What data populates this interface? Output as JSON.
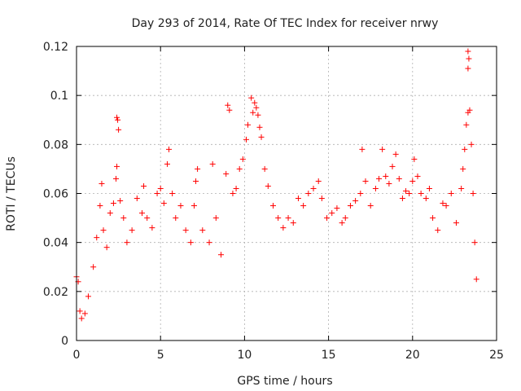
{
  "chart_data": {
    "type": "scatter",
    "title": "Day 293 of 2014, Rate Of TEC Index for receiver nrwy",
    "xlabel": "GPS time / hours",
    "ylabel": "ROTI / TECUs",
    "xlim": [
      0,
      25
    ],
    "ylim": [
      0,
      0.12
    ],
    "xticks": [
      0,
      5,
      10,
      15,
      20,
      25
    ],
    "xtick_labels": [
      "0",
      "5",
      "10",
      "15",
      "20",
      "25"
    ],
    "yticks": [
      0,
      0.02,
      0.04,
      0.06,
      0.08,
      0.1,
      0.12
    ],
    "ytick_labels": [
      "0",
      "0.02",
      "0.04",
      "0.06",
      "0.08",
      "0.1",
      "0.12"
    ],
    "grid": true,
    "marker": "plus",
    "color": "#ff0000",
    "series": [
      {
        "name": "ROTI",
        "points": [
          [
            0.0,
            0.026
          ],
          [
            0.1,
            0.024
          ],
          [
            0.2,
            0.012
          ],
          [
            0.3,
            0.009
          ],
          [
            0.5,
            0.011
          ],
          [
            0.7,
            0.018
          ],
          [
            1.0,
            0.03
          ],
          [
            1.2,
            0.042
          ],
          [
            1.4,
            0.055
          ],
          [
            1.5,
            0.064
          ],
          [
            1.6,
            0.045
          ],
          [
            1.8,
            0.038
          ],
          [
            2.0,
            0.052
          ],
          [
            2.2,
            0.056
          ],
          [
            2.4,
            0.091
          ],
          [
            2.45,
            0.09
          ],
          [
            2.5,
            0.086
          ],
          [
            2.4,
            0.071
          ],
          [
            2.35,
            0.066
          ],
          [
            2.6,
            0.057
          ],
          [
            2.8,
            0.05
          ],
          [
            3.0,
            0.04
          ],
          [
            3.3,
            0.045
          ],
          [
            3.6,
            0.058
          ],
          [
            3.9,
            0.052
          ],
          [
            4.0,
            0.063
          ],
          [
            4.2,
            0.05
          ],
          [
            4.5,
            0.046
          ],
          [
            4.8,
            0.06
          ],
          [
            5.0,
            0.062
          ],
          [
            5.2,
            0.056
          ],
          [
            5.4,
            0.072
          ],
          [
            5.5,
            0.078
          ],
          [
            5.7,
            0.06
          ],
          [
            5.9,
            0.05
          ],
          [
            6.2,
            0.055
          ],
          [
            6.5,
            0.045
          ],
          [
            6.8,
            0.04
          ],
          [
            7.0,
            0.055
          ],
          [
            7.1,
            0.065
          ],
          [
            7.2,
            0.07
          ],
          [
            7.5,
            0.045
          ],
          [
            7.9,
            0.04
          ],
          [
            8.1,
            0.072
          ],
          [
            8.3,
            0.05
          ],
          [
            8.6,
            0.035
          ],
          [
            8.9,
            0.068
          ],
          [
            9.0,
            0.096
          ],
          [
            9.1,
            0.094
          ],
          [
            9.3,
            0.06
          ],
          [
            9.5,
            0.062
          ],
          [
            9.7,
            0.07
          ],
          [
            9.9,
            0.074
          ],
          [
            10.1,
            0.082
          ],
          [
            10.2,
            0.088
          ],
          [
            10.4,
            0.099
          ],
          [
            10.5,
            0.093
          ],
          [
            10.6,
            0.097
          ],
          [
            10.7,
            0.095
          ],
          [
            10.8,
            0.092
          ],
          [
            10.9,
            0.087
          ],
          [
            11.0,
            0.083
          ],
          [
            11.2,
            0.07
          ],
          [
            11.4,
            0.063
          ],
          [
            11.7,
            0.055
          ],
          [
            12.0,
            0.05
          ],
          [
            12.3,
            0.046
          ],
          [
            12.6,
            0.05
          ],
          [
            12.9,
            0.048
          ],
          [
            13.2,
            0.058
          ],
          [
            13.5,
            0.055
          ],
          [
            13.8,
            0.06
          ],
          [
            14.1,
            0.062
          ],
          [
            14.4,
            0.065
          ],
          [
            14.6,
            0.058
          ],
          [
            14.9,
            0.05
          ],
          [
            15.2,
            0.052
          ],
          [
            15.5,
            0.054
          ],
          [
            15.8,
            0.048
          ],
          [
            16.0,
            0.05
          ],
          [
            16.3,
            0.055
          ],
          [
            16.6,
            0.057
          ],
          [
            16.9,
            0.06
          ],
          [
            17.0,
            0.078
          ],
          [
            17.2,
            0.065
          ],
          [
            17.5,
            0.055
          ],
          [
            17.8,
            0.062
          ],
          [
            18.0,
            0.066
          ],
          [
            18.2,
            0.078
          ],
          [
            18.4,
            0.067
          ],
          [
            18.6,
            0.064
          ],
          [
            18.8,
            0.071
          ],
          [
            19.0,
            0.076
          ],
          [
            19.2,
            0.066
          ],
          [
            19.4,
            0.058
          ],
          [
            19.6,
            0.061
          ],
          [
            19.8,
            0.06
          ],
          [
            20.0,
            0.065
          ],
          [
            20.1,
            0.074
          ],
          [
            20.3,
            0.067
          ],
          [
            20.5,
            0.06
          ],
          [
            20.8,
            0.058
          ],
          [
            21.0,
            0.062
          ],
          [
            21.2,
            0.05
          ],
          [
            21.5,
            0.045
          ],
          [
            21.8,
            0.056
          ],
          [
            22.0,
            0.055
          ],
          [
            22.3,
            0.06
          ],
          [
            22.6,
            0.048
          ],
          [
            22.9,
            0.062
          ],
          [
            23.0,
            0.07
          ],
          [
            23.1,
            0.078
          ],
          [
            23.2,
            0.088
          ],
          [
            23.3,
            0.093
          ],
          [
            23.4,
            0.094
          ],
          [
            23.3,
            0.118
          ],
          [
            23.35,
            0.115
          ],
          [
            23.3,
            0.111
          ],
          [
            23.5,
            0.08
          ],
          [
            23.6,
            0.06
          ],
          [
            23.7,
            0.04
          ],
          [
            23.8,
            0.025
          ]
        ]
      }
    ]
  }
}
